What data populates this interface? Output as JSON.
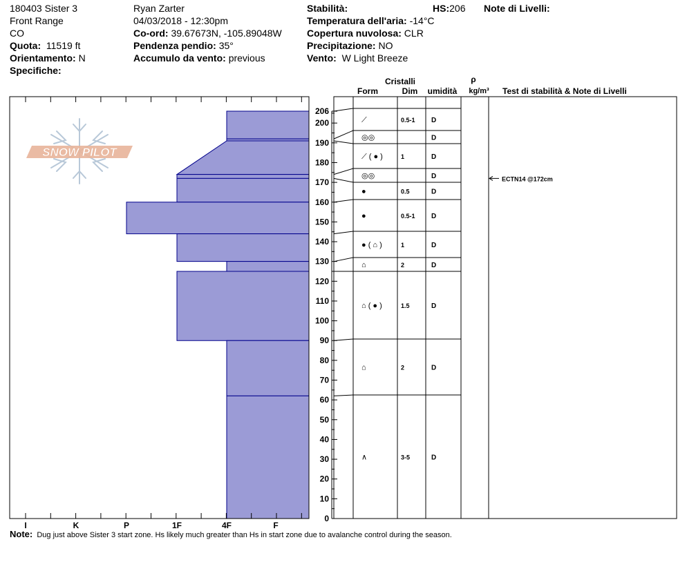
{
  "header": {
    "col1": [
      "180403 Sister 3",
      "Front Range",
      "CO"
    ],
    "quota": {
      "label": "Quota:",
      "value": "11519 ft"
    },
    "orientamento": {
      "label": "Orientamento:",
      "value": "N"
    },
    "specifiche": {
      "label": "Specifiche:",
      "value": ""
    },
    "observer": "Ryan Zarter",
    "datetime": "04/03/2018 - 12:30pm",
    "coord": {
      "label": "Co-ord:",
      "value": "39.67673N, -105.89048W"
    },
    "pendenza": {
      "label": "Pendenza pendio:",
      "value": "35°"
    },
    "accumulo": {
      "label": "Accumulo da vento:",
      "value": "previous"
    },
    "stabilita": {
      "label": "Stabilità:",
      "value": ""
    },
    "hs": {
      "label": "HS:",
      "value": "206"
    },
    "temperatura": {
      "label": "Temperatura dell'aria:",
      "value": "-14°C"
    },
    "copertura": {
      "label": "Copertura nuvolosa:",
      "value": "CLR"
    },
    "precipitazione": {
      "label": "Precipitazione:",
      "value": "NO"
    },
    "vento": {
      "label": "Vento:",
      "value": "W Light Breeze"
    },
    "note_livelli": {
      "label": "Note di Livelli:",
      "value": ""
    }
  },
  "columns": {
    "cristalli": "Cristalli",
    "form": "Form",
    "dim": "Dim",
    "umidita": "umidità",
    "rho": "ρ",
    "density_unit": "kg/m³",
    "test": "Test di stabilità & Note di Livelli"
  },
  "logo_text": "SNOW PILOT",
  "note": {
    "label": "Note:",
    "text": "Dug just above Sister 3 start zone.  Hs likely much greater than Hs in start zone due to avalanche control during the season."
  },
  "colors": {
    "layer_fill": "#9b9bd6",
    "layer_stroke": "#00008b",
    "logo": "#e8b49a",
    "snowflake": "#b8c8d8"
  },
  "chart_data": {
    "type": "bar",
    "orientation": "horizontal-profile",
    "xlabel": "",
    "ylabel": "",
    "ylim": [
      0,
      206
    ],
    "y_ticks": [
      0,
      10,
      20,
      30,
      40,
      50,
      60,
      70,
      80,
      90,
      100,
      110,
      120,
      130,
      140,
      150,
      160,
      170,
      180,
      190,
      200,
      206
    ],
    "hardness_scale": [
      "I",
      "K",
      "P",
      "1F",
      "4F",
      "F"
    ],
    "layers": [
      {
        "top": 206,
        "bottom": 192,
        "hardness": "4F",
        "hardness2": "",
        "form": "⟋",
        "dim": "0.5-1",
        "moisture": "D"
      },
      {
        "top": 192,
        "bottom": 191,
        "hardness": "4F",
        "hardness2": "",
        "form": "◎◎",
        "dim": "",
        "moisture": "D"
      },
      {
        "top": 191,
        "bottom": 174,
        "hardness": "4F",
        "hardness2": "1F",
        "form": "⟋ ( ● )",
        "dim": "1",
        "moisture": "D"
      },
      {
        "top": 174,
        "bottom": 172,
        "hardness": "1F",
        "hardness2": "",
        "form": "◎◎",
        "dim": "",
        "moisture": "D"
      },
      {
        "top": 172,
        "bottom": 160,
        "hardness": "1F",
        "hardness2": "",
        "form": "●",
        "dim": "0.5",
        "moisture": "D"
      },
      {
        "top": 160,
        "bottom": 144,
        "hardness": "P",
        "hardness2": "",
        "form": "●",
        "dim": "0.5-1",
        "moisture": "D"
      },
      {
        "top": 144,
        "bottom": 130,
        "hardness": "1F",
        "hardness2": "",
        "form": "● ( ⌂ )",
        "dim": "1",
        "moisture": "D"
      },
      {
        "top": 130,
        "bottom": 125,
        "hardness": "4F",
        "hardness2": "",
        "form": "⌂",
        "dim": "2",
        "moisture": "D"
      },
      {
        "top": 125,
        "bottom": 90,
        "hardness": "1F",
        "hardness2": "",
        "form": "⌂ ( ● )",
        "dim": "1.5",
        "moisture": "D"
      },
      {
        "top": 90,
        "bottom": 62,
        "hardness": "4F",
        "hardness2": "",
        "form": "⌂",
        "dim": "2",
        "moisture": "D"
      },
      {
        "top": 62,
        "bottom": 0,
        "hardness": "4F",
        "hardness2": "",
        "form": "∧",
        "dim": "3-5",
        "moisture": "D"
      }
    ],
    "tests": [
      {
        "depth": 172,
        "label": "ECTN14 @172cm"
      }
    ]
  }
}
